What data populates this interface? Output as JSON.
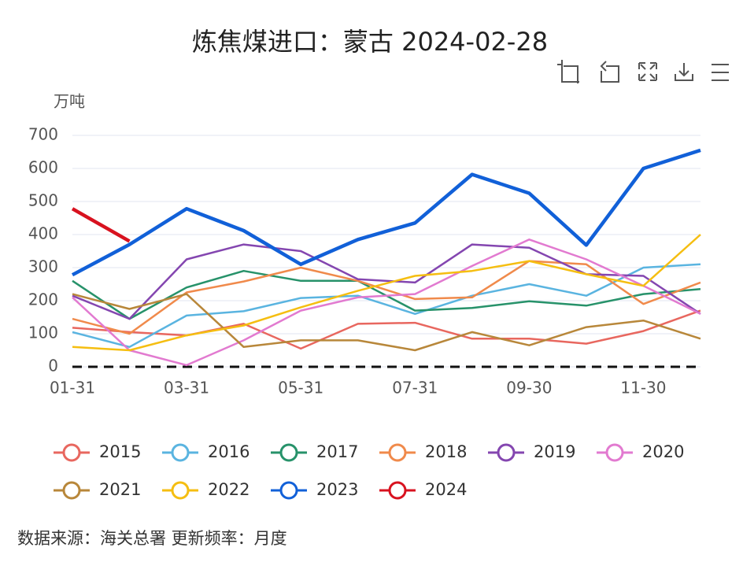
{
  "chart_data": {
    "type": "line",
    "title": "炼焦煤进口：蒙古 2024-02-28",
    "y_axis_label": "万吨",
    "source": "数据来源：海关总署  更新频率：月度",
    "categories": [
      "01-31",
      null,
      "03-31",
      null,
      "05-31",
      null,
      "07-31",
      null,
      "09-30",
      null,
      "11-30",
      null
    ],
    "ylim": [
      0,
      700
    ],
    "yticks": [
      0,
      100,
      200,
      300,
      400,
      500,
      600,
      700
    ],
    "grid": true,
    "series": [
      {
        "name": "2015",
        "color": "#e8675f",
        "values": [
          118,
          105,
          95,
          130,
          55,
          130,
          133,
          85,
          85,
          70,
          108,
          170
        ]
      },
      {
        "name": "2016",
        "color": "#5ab4e0",
        "values": [
          105,
          60,
          155,
          168,
          208,
          215,
          160,
          215,
          250,
          215,
          300,
          310
        ]
      },
      {
        "name": "2017",
        "color": "#27926a",
        "values": [
          260,
          145,
          240,
          290,
          260,
          260,
          170,
          178,
          198,
          185,
          220,
          235
        ]
      },
      {
        "name": "2018",
        "color": "#f08a4b",
        "values": [
          145,
          100,
          225,
          258,
          300,
          260,
          205,
          210,
          320,
          310,
          190,
          255
        ]
      },
      {
        "name": "2019",
        "color": "#8446b0",
        "values": [
          215,
          145,
          325,
          370,
          350,
          265,
          255,
          370,
          360,
          280,
          275,
          160
        ]
      },
      {
        "name": "2020",
        "color": "#e27ad0",
        "values": [
          210,
          50,
          5,
          80,
          170,
          210,
          220,
          305,
          385,
          325,
          245,
          160
        ]
      },
      {
        "name": "2021",
        "color": "#b8873a",
        "values": [
          220,
          175,
          220,
          60,
          80,
          80,
          50,
          105,
          65,
          120,
          140,
          85
        ]
      },
      {
        "name": "2022",
        "color": "#f5be11",
        "values": [
          60,
          50,
          95,
          125,
          180,
          230,
          275,
          290,
          320,
          280,
          245,
          400
        ]
      },
      {
        "name": "2023",
        "color": "#1160d8",
        "values": [
          278,
          370,
          478,
          412,
          310,
          385,
          435,
          582,
          525,
          368,
          600,
          655
        ]
      },
      {
        "name": "2024",
        "color": "#d8121f",
        "values": [
          478,
          380,
          null,
          null,
          null,
          null,
          null,
          null,
          null,
          null,
          null,
          null
        ]
      }
    ]
  }
}
